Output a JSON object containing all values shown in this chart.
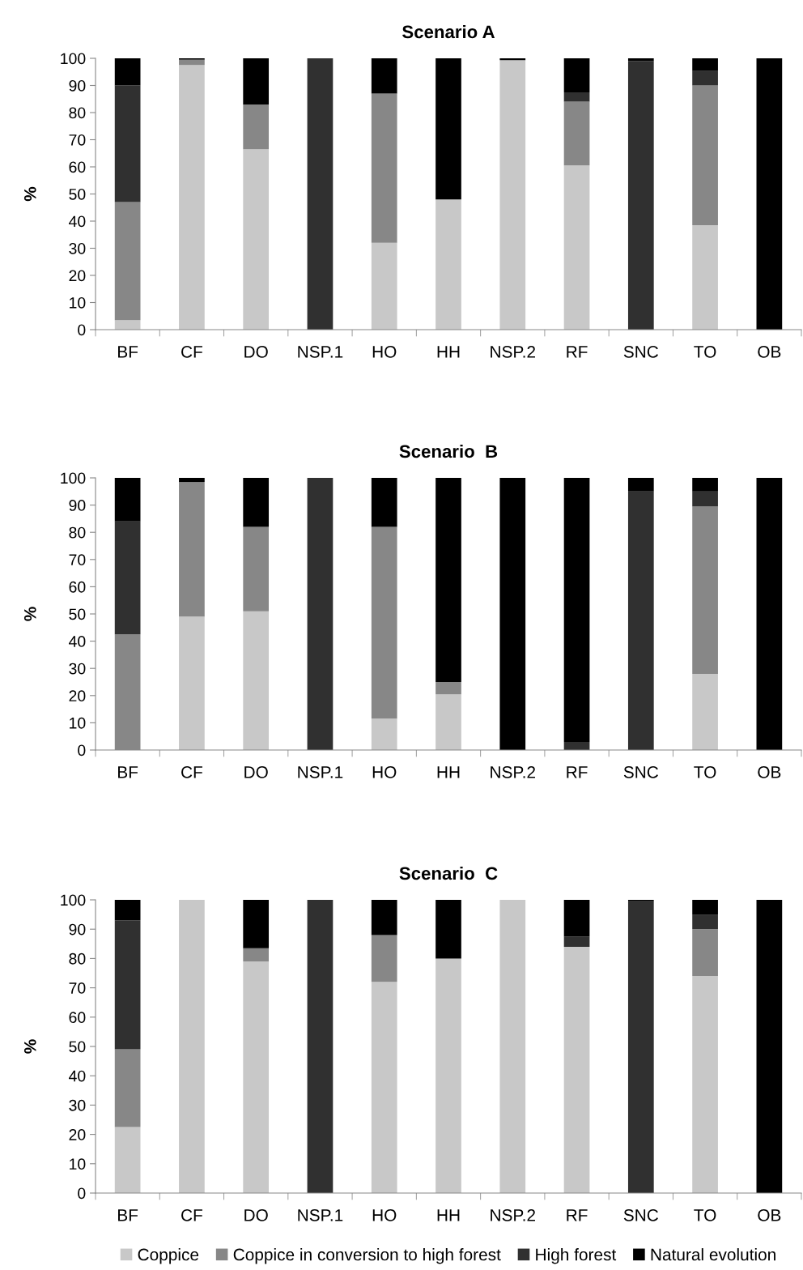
{
  "chart_data": [
    {
      "type": "bar",
      "stacked": true,
      "title": "Scenario A",
      "ylabel": "%",
      "categories": [
        "BF",
        "CF",
        "DO",
        "NSP.1",
        "HO",
        "HH",
        "NSP.2",
        "RF",
        "SNC",
        "TO",
        "OB"
      ],
      "ylim": [
        0,
        100
      ],
      "yticks": [
        0,
        10,
        20,
        30,
        40,
        50,
        60,
        70,
        80,
        90,
        100
      ],
      "grid": false,
      "legend": false,
      "series": [
        {
          "color": "#c8c8c8",
          "values": [
            3.5,
            97.5,
            66.5,
            0,
            32,
            48,
            99.3,
            60.5,
            0,
            38.5,
            0
          ]
        },
        {
          "color": "#878787",
          "values": [
            43.5,
            2,
            16.5,
            0,
            55,
            0,
            0,
            23.5,
            0,
            51.5,
            0
          ]
        },
        {
          "color": "#303030",
          "values": [
            43,
            0,
            0,
            100,
            0,
            0,
            0,
            3.5,
            99,
            5.5,
            0
          ]
        },
        {
          "color": "#000000",
          "values": [
            10,
            0.5,
            17,
            0,
            13,
            52,
            0.7,
            12.5,
            1,
            4.5,
            100
          ]
        }
      ]
    },
    {
      "type": "bar",
      "stacked": true,
      "title": "Scenario  B",
      "ylabel": "%",
      "categories": [
        "BF",
        "CF",
        "DO",
        "NSP.1",
        "HO",
        "HH",
        "NSP.2",
        "RF",
        "SNC",
        "TO",
        "OB"
      ],
      "ylim": [
        0,
        100
      ],
      "yticks": [
        0,
        10,
        20,
        30,
        40,
        50,
        60,
        70,
        80,
        90,
        100
      ],
      "grid": false,
      "legend": false,
      "series": [
        {
          "color": "#c8c8c8",
          "values": [
            0,
            49,
            51,
            0,
            11.5,
            20.5,
            0,
            0,
            0,
            28,
            0
          ]
        },
        {
          "color": "#878787",
          "values": [
            42.5,
            49.5,
            31,
            0,
            70.5,
            4.5,
            0,
            0,
            0,
            61.5,
            0
          ]
        },
        {
          "color": "#303030",
          "values": [
            41.5,
            0,
            0,
            100,
            0,
            0,
            0,
            3,
            95,
            5.5,
            0
          ]
        },
        {
          "color": "#000000",
          "values": [
            16,
            1.5,
            18,
            0,
            18,
            75,
            100,
            97,
            5,
            5,
            100
          ]
        }
      ]
    },
    {
      "type": "bar",
      "stacked": true,
      "title": "Scenario  C",
      "ylabel": "%",
      "categories": [
        "BF",
        "CF",
        "DO",
        "NSP.1",
        "HO",
        "HH",
        "NSP.2",
        "RF",
        "SNC",
        "TO",
        "OB"
      ],
      "ylim": [
        0,
        100
      ],
      "yticks": [
        0,
        10,
        20,
        30,
        40,
        50,
        60,
        70,
        80,
        90,
        100
      ],
      "grid": false,
      "legend": "bottom",
      "series": [
        {
          "name": "Coppice",
          "color": "#c8c8c8",
          "values": [
            22.5,
            100,
            79,
            0,
            72,
            80,
            100,
            84,
            0,
            74,
            0
          ]
        },
        {
          "name": "Coppice in conversion to high forest",
          "color": "#878787",
          "values": [
            26.5,
            0,
            4.5,
            0,
            16,
            0,
            0,
            0,
            0,
            16,
            0
          ]
        },
        {
          "name": "High forest",
          "color": "#303030",
          "values": [
            44,
            0,
            0,
            100,
            0,
            0,
            0,
            3.5,
            99.5,
            5,
            0
          ]
        },
        {
          "name": "Natural evolution",
          "color": "#000000",
          "values": [
            7,
            0,
            16.5,
            0,
            12,
            20,
            0,
            12.5,
            0.5,
            5,
            100
          ]
        }
      ]
    }
  ]
}
